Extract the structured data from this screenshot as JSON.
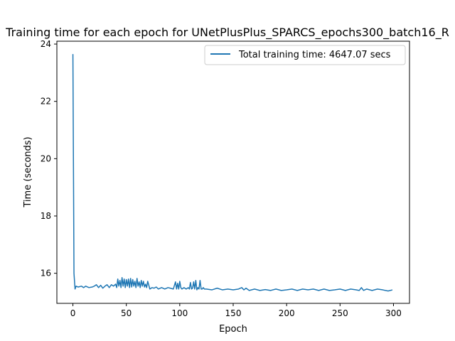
{
  "chart_data": {
    "type": "line",
    "title": "Training time for each epoch for UNetPlusPlus_SPARCS_epochs300_batch16_R",
    "xlabel": "Epoch",
    "ylabel": "Time (seconds)",
    "xlim": [
      -15,
      315
    ],
    "ylim": [
      14.95,
      24.1
    ],
    "xticks": [
      0,
      50,
      100,
      150,
      200,
      250,
      300
    ],
    "yticks": [
      16,
      18,
      20,
      22,
      24
    ],
    "grid": false,
    "legend_position": "top-right",
    "series": [
      {
        "name": "Total training time: 4647.07 secs",
        "color": "#1f77b4",
        "x": [
          0,
          1,
          2,
          3,
          5,
          8,
          10,
          12,
          15,
          18,
          20,
          22,
          24,
          26,
          28,
          30,
          32,
          34,
          36,
          38,
          40,
          41,
          42,
          43,
          44,
          45,
          46,
          47,
          48,
          49,
          50,
          51,
          52,
          53,
          54,
          55,
          56,
          57,
          58,
          59,
          60,
          61,
          62,
          63,
          64,
          65,
          66,
          67,
          68,
          69,
          70,
          72,
          74,
          76,
          78,
          80,
          83,
          86,
          89,
          92,
          94,
          96,
          97,
          98,
          99,
          100,
          101,
          102,
          104,
          106,
          108,
          109,
          110,
          111,
          112,
          113,
          114,
          115,
          116,
          117,
          118,
          119,
          120,
          121,
          122,
          123,
          125,
          130,
          135,
          140,
          145,
          150,
          155,
          158,
          160,
          162,
          165,
          170,
          175,
          180,
          185,
          190,
          195,
          200,
          205,
          210,
          215,
          220,
          225,
          230,
          235,
          240,
          245,
          250,
          255,
          260,
          265,
          268,
          270,
          272,
          275,
          280,
          285,
          290,
          295,
          299
        ],
        "values": [
          23.65,
          16.0,
          15.45,
          15.55,
          15.52,
          15.55,
          15.5,
          15.55,
          15.5,
          15.52,
          15.55,
          15.6,
          15.5,
          15.58,
          15.48,
          15.55,
          15.6,
          15.5,
          15.6,
          15.55,
          15.62,
          15.5,
          15.8,
          15.55,
          15.75,
          15.5,
          15.85,
          15.55,
          15.8,
          15.5,
          15.78,
          15.55,
          15.8,
          15.5,
          15.82,
          15.52,
          15.78,
          15.55,
          15.72,
          15.5,
          15.82,
          15.55,
          15.7,
          15.5,
          15.75,
          15.55,
          15.72,
          15.52,
          15.62,
          15.5,
          15.72,
          15.45,
          15.5,
          15.48,
          15.52,
          15.45,
          15.5,
          15.45,
          15.5,
          15.47,
          15.45,
          15.7,
          15.45,
          15.65,
          15.45,
          15.72,
          15.5,
          15.45,
          15.5,
          15.45,
          15.5,
          15.45,
          15.68,
          15.45,
          15.48,
          15.7,
          15.45,
          15.75,
          15.42,
          15.5,
          15.45,
          15.75,
          15.45,
          15.45,
          15.5,
          15.45,
          15.45,
          15.42,
          15.48,
          15.42,
          15.45,
          15.42,
          15.45,
          15.5,
          15.42,
          15.48,
          15.4,
          15.45,
          15.4,
          15.43,
          15.4,
          15.45,
          15.4,
          15.42,
          15.45,
          15.4,
          15.45,
          15.42,
          15.45,
          15.4,
          15.45,
          15.4,
          15.42,
          15.45,
          15.4,
          15.45,
          15.42,
          15.4,
          15.5,
          15.4,
          15.45,
          15.4,
          15.45,
          15.42,
          15.38,
          15.42
        ]
      }
    ]
  }
}
